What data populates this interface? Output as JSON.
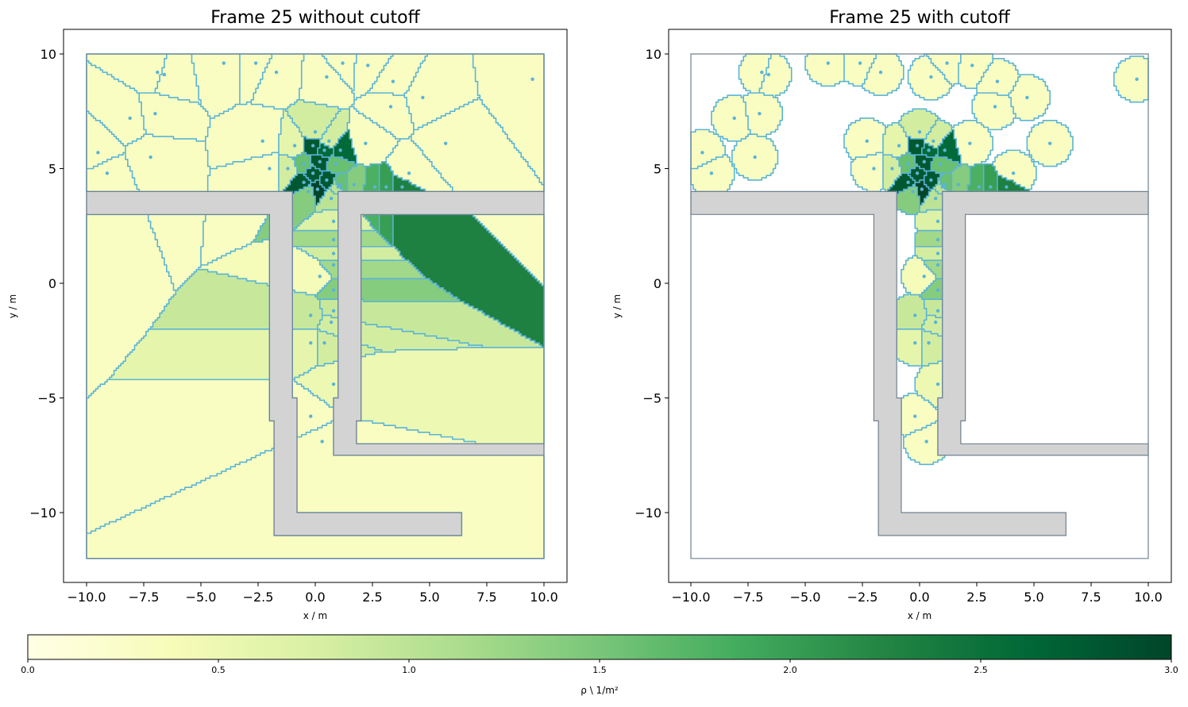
{
  "chart_data": [
    {
      "type": "voronoi-density-map",
      "title": "Frame 25 without cutoff",
      "xlabel": "x / m",
      "ylabel": "y / m",
      "xlim": [
        -11.0,
        11.0
      ],
      "ylim": [
        -13.0,
        11.0
      ],
      "xticks": [
        "−10.0",
        "−7.5",
        "−5.0",
        "−2.5",
        "0.0",
        "2.5",
        "5.0",
        "7.5",
        "10.0"
      ],
      "xtick_values": [
        -10,
        -7.5,
        -5,
        -2.5,
        0,
        2.5,
        5,
        7.5,
        10
      ],
      "yticks": [
        "10",
        "5",
        "0",
        "−5",
        "−10"
      ],
      "ytick_values": [
        10,
        5,
        0,
        -5,
        -10
      ],
      "cutoff": false
    },
    {
      "type": "voronoi-density-map",
      "title": "Frame 25 with cutoff",
      "xlabel": "x / m",
      "ylabel": "y / m",
      "xlim": [
        -11.0,
        11.0
      ],
      "ylim": [
        -13.0,
        11.0
      ],
      "xticks": [
        "−10.0",
        "−7.5",
        "−5.0",
        "−2.5",
        "0.0",
        "2.5",
        "5.0",
        "7.5",
        "10.0"
      ],
      "xtick_values": [
        -10,
        -7.5,
        -5,
        -2.5,
        0,
        2.5,
        5,
        7.5,
        10
      ],
      "yticks": [
        "10",
        "5",
        "0",
        "−5",
        "−10"
      ],
      "ytick_values": [
        10,
        5,
        0,
        -5,
        -10
      ],
      "cutoff": true,
      "cutoff_radius": 1.0
    }
  ],
  "pedestrians": [
    [
      -9.5,
      5.7,
      0.3
    ],
    [
      -9.1,
      4.8,
      0.3
    ],
    [
      -8.1,
      7.2,
      0.3
    ],
    [
      -7.0,
      7.4,
      0.3
    ],
    [
      -7.2,
      5.5,
      0.3
    ],
    [
      -6.9,
      9.2,
      0.3
    ],
    [
      -6.6,
      9.1,
      0.3
    ],
    [
      -4.0,
      9.6,
      0.3
    ],
    [
      -2.6,
      9.6,
      0.3
    ],
    [
      -1.7,
      9.2,
      0.3
    ],
    [
      -2.3,
      6.2,
      0.3
    ],
    [
      -2.0,
      5.0,
      0.3
    ],
    [
      0.5,
      9.0,
      0.3
    ],
    [
      1.2,
      9.6,
      0.3
    ],
    [
      2.3,
      9.5,
      0.3
    ],
    [
      3.4,
      8.8,
      0.3
    ],
    [
      4.7,
      8.1,
      0.3
    ],
    [
      3.3,
      7.7,
      0.3
    ],
    [
      9.5,
      8.9,
      0.3
    ],
    [
      5.7,
      6.1,
      0.3
    ],
    [
      2.2,
      6.1,
      0.3
    ],
    [
      4.1,
      4.8,
      0.3
    ],
    [
      0.0,
      6.6,
      0.8
    ],
    [
      0.6,
      6.2,
      0.8
    ],
    [
      -0.9,
      6.0,
      0.6
    ],
    [
      -0.1,
      6.0,
      2.8
    ],
    [
      0.4,
      5.8,
      2.6
    ],
    [
      1.1,
      5.8,
      2.6
    ],
    [
      -1.2,
      5.0,
      0.8
    ],
    [
      -0.5,
      5.2,
      1.6
    ],
    [
      0.2,
      5.3,
      2.8
    ],
    [
      0.9,
      5.2,
      1.6
    ],
    [
      -0.1,
      4.8,
      2.8
    ],
    [
      0.5,
      4.5,
      2.8
    ],
    [
      -0.5,
      4.4,
      2.8
    ],
    [
      1.1,
      4.3,
      1.6
    ],
    [
      2.6,
      4.2,
      1.8
    ],
    [
      3.1,
      4.2,
      2.0
    ],
    [
      3.8,
      4.2,
      2.3
    ],
    [
      -0.3,
      4.0,
      1.4
    ],
    [
      0.1,
      4.1,
      3.0
    ],
    [
      0.7,
      3.7,
      1.0
    ],
    [
      1.0,
      4.2,
      1.0
    ],
    [
      1.7,
      4.3,
      1.4
    ],
    [
      0.8,
      2.7,
      0.7
    ],
    [
      0.8,
      1.9,
      1.2
    ],
    [
      0.8,
      1.3,
      0.8
    ],
    [
      0.8,
      0.8,
      1.2
    ],
    [
      0.2,
      0.3,
      0.4
    ],
    [
      0.8,
      -0.3,
      1.4
    ],
    [
      0.8,
      -1.2,
      0.9
    ],
    [
      -0.2,
      -1.4,
      0.9
    ],
    [
      0.7,
      -1.7,
      0.8
    ],
    [
      -0.2,
      -2.6,
      0.6
    ],
    [
      0.4,
      -2.6,
      0.8
    ],
    [
      0.8,
      -4.4,
      0.5
    ],
    [
      -0.2,
      -5.8,
      0.3
    ],
    [
      0.3,
      -6.9,
      0.3
    ]
  ],
  "colorbar": {
    "label": "ρ \\ 1/m²",
    "ticks": [
      "0.0",
      "0.5",
      "1.0",
      "1.5",
      "2.0",
      "2.5",
      "3.0"
    ],
    "tick_values": [
      0,
      0.5,
      1.0,
      1.5,
      2.0,
      2.5,
      3.0
    ],
    "range": [
      0,
      3.0
    ],
    "colormap": "YlGn",
    "colormap_stops": [
      "#ffffe5",
      "#f7fcb9",
      "#d9f0a3",
      "#addd8e",
      "#78c679",
      "#41ab5d",
      "#238443",
      "#006837",
      "#004529"
    ]
  },
  "colors": {
    "cell_edge": "#5ab4d6",
    "obstacle_fill": "#d3d3d3",
    "boundary": "#708090",
    "point": "#5ab4d6"
  }
}
